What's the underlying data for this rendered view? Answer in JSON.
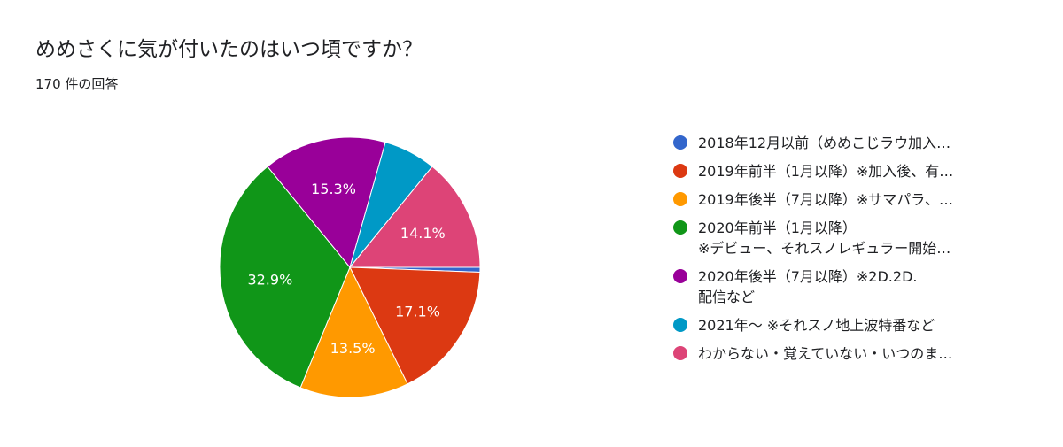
{
  "title": "めめさくに気が付いたのはいつ頃ですか？",
  "subtitle": "170 件の回答",
  "chart_data": {
    "type": "pie",
    "categories": [
      "2018年12月以前（めめこじラウ加入…",
      "2019年前半（1月以降）※加入後、有…",
      "2019年後半（7月以降）※サマパラ、…",
      "2020年前半（1月以降）\n※デビュー、それスノレギュラー開始…",
      "2020年後半（7月以降）※2D.2D.\n配信など",
      "2021年〜 ※それスノ地上波特番など",
      "わからない・覚えていない・いつのま…"
    ],
    "values": [
      0.6,
      17.1,
      13.5,
      32.9,
      15.3,
      6.5,
      14.1
    ],
    "labels": [
      "",
      "17.1%",
      "13.5%",
      "32.9%",
      "15.3%",
      "",
      "14.1%"
    ],
    "colors": [
      "#3366cc",
      "#dc3912",
      "#ff9900",
      "#109618",
      "#990099",
      "#0099c6",
      "#dd4477"
    ],
    "legend": "right",
    "start_angle_deg": 90,
    "direction": "clockwise"
  }
}
